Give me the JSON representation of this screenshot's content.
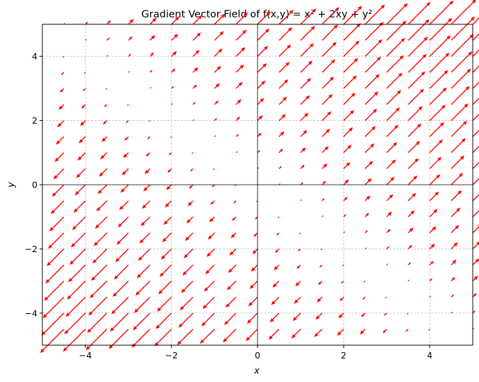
{
  "chart_data": {
    "type": "quiver",
    "title": "Gradient Vector Field of f(x,y) = x² + 2xy + y²",
    "xlabel": "x",
    "ylabel": "y",
    "xlim": [
      -5,
      5
    ],
    "ylim": [
      -5,
      5
    ],
    "xticks": [
      -4,
      -2,
      0,
      2,
      4
    ],
    "yticks": [
      -4,
      -2,
      0,
      2,
      4
    ],
    "xtick_labels": [
      "−4",
      "−2",
      "0",
      "2",
      "4"
    ],
    "ytick_labels": [
      "−4",
      "−2",
      "0",
      "2",
      "4"
    ],
    "grid": true,
    "zero_lines": true,
    "field": {
      "function": "f(x,y) = x^2 + 2xy + y^2",
      "u": "2x + 2y",
      "v": "2x + 2y",
      "grid_start": -4.5,
      "grid_end": 5.0,
      "grid_count": 20
    },
    "arrow_color": "#ff0000"
  }
}
